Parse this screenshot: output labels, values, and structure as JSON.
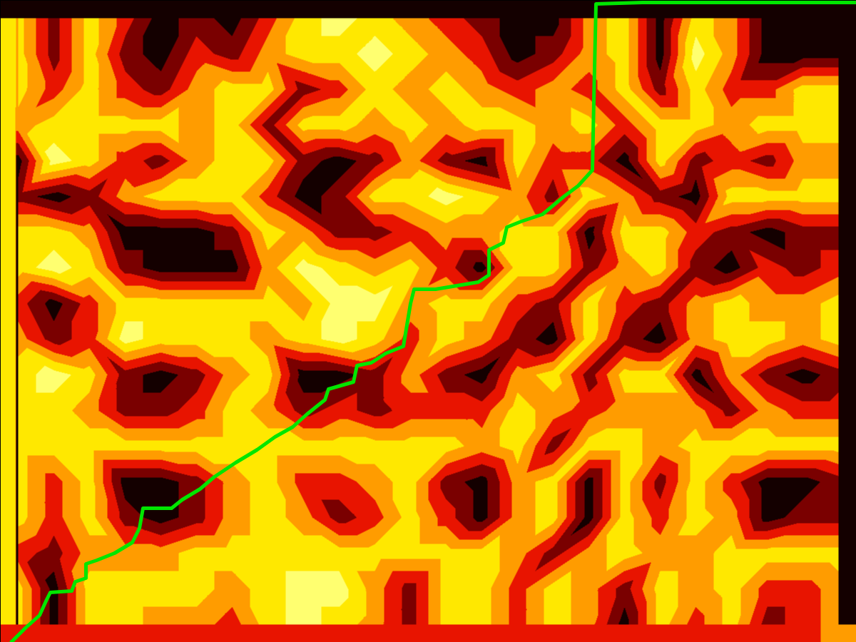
{
  "chart_data": {
    "type": "heatmap",
    "xlim": [
      0,
      1200
    ],
    "ylim": [
      0,
      900
    ],
    "tick_labels": false,
    "heatmap": {
      "x": [
        25,
        75,
        125,
        175,
        225,
        275,
        325,
        375,
        425,
        475,
        525,
        575,
        625,
        675,
        725,
        775,
        825,
        875,
        925,
        975,
        1025,
        1075,
        1125,
        1175
      ],
      "y": [
        875,
        825,
        775,
        725,
        675,
        625,
        575,
        525,
        475,
        425,
        375,
        325,
        275,
        225,
        175,
        125,
        75,
        25
      ],
      "z": [
        [
          4,
          1,
          4,
          2,
          0,
          1,
          0,
          2,
          4,
          5,
          4,
          3,
          2,
          1,
          0,
          0,
          3,
          4,
          0,
          4,
          3,
          0,
          0,
          0
        ],
        [
          4,
          1,
          4,
          1,
          0,
          2,
          1,
          3,
          4,
          4,
          5,
          4,
          3,
          2,
          0,
          1,
          3,
          4,
          0,
          5,
          3,
          0,
          0,
          0
        ],
        [
          4,
          2,
          4,
          2,
          1,
          3,
          4,
          4,
          1,
          2,
          4,
          3,
          4,
          3,
          2,
          3,
          2,
          4,
          1,
          4,
          2,
          2,
          4,
          4
        ],
        [
          3,
          4,
          4,
          4,
          4,
          3,
          4,
          1,
          4,
          4,
          3,
          4,
          3,
          4,
          4,
          3,
          4,
          2,
          4,
          4,
          3,
          4,
          4,
          4
        ],
        [
          0,
          5,
          4,
          2,
          1,
          3,
          4,
          4,
          1,
          0,
          1,
          3,
          1,
          0,
          4,
          2,
          2,
          0,
          4,
          1,
          2,
          1,
          3,
          3
        ],
        [
          1,
          0,
          1,
          3,
          4,
          4,
          4,
          2,
          0,
          1,
          4,
          4,
          5,
          4,
          3,
          1,
          4,
          3,
          1,
          0,
          4,
          4,
          4,
          4
        ],
        [
          4,
          4,
          3,
          0,
          0,
          0,
          1,
          4,
          3,
          1,
          1,
          2,
          3,
          3,
          4,
          4,
          0,
          4,
          4,
          2,
          1,
          0,
          1,
          1
        ],
        [
          4,
          5,
          4,
          1,
          0,
          0,
          0,
          3,
          5,
          4,
          3,
          4,
          2,
          0,
          4,
          4,
          1,
          3,
          4,
          1,
          0,
          2,
          1,
          2
        ],
        [
          2,
          0,
          2,
          4,
          4,
          4,
          4,
          4,
          3,
          5,
          5,
          3,
          4,
          4,
          2,
          1,
          4,
          2,
          1,
          3,
          4,
          3,
          3,
          4
        ],
        [
          3,
          1,
          2,
          5,
          4,
          4,
          4,
          3,
          4,
          5,
          4,
          2,
          4,
          3,
          1,
          0,
          4,
          1,
          0,
          3,
          4,
          4,
          3,
          4
        ],
        [
          4,
          5,
          4,
          1,
          0,
          1,
          3,
          4,
          0,
          0,
          1,
          3,
          1,
          0,
          3,
          4,
          1,
          4,
          4,
          0,
          3,
          1,
          0,
          1
        ],
        [
          4,
          4,
          3,
          1,
          1,
          2,
          4,
          3,
          1,
          2,
          1,
          2,
          2,
          2,
          4,
          3,
          2,
          3,
          3,
          3,
          1,
          3,
          2,
          2
        ],
        [
          4,
          4,
          4,
          4,
          4,
          4,
          4,
          4,
          4,
          4,
          4,
          4,
          4,
          3,
          4,
          1,
          4,
          4,
          3,
          4,
          4,
          4,
          4,
          4
        ],
        [
          4,
          2,
          4,
          0,
          0,
          1,
          3,
          4,
          2,
          2,
          3,
          4,
          1,
          0,
          3,
          4,
          0,
          4,
          1,
          4,
          2,
          0,
          0,
          1
        ],
        [
          4,
          2,
          4,
          1,
          0,
          1,
          3,
          4,
          3,
          1,
          2,
          4,
          2,
          0,
          3,
          4,
          0,
          4,
          2,
          4,
          3,
          0,
          1,
          1
        ],
        [
          2,
          1,
          3,
          3,
          3,
          4,
          4,
          4,
          4,
          4,
          4,
          4,
          4,
          4,
          3,
          1,
          3,
          4,
          3,
          3,
          4,
          4,
          4,
          4
        ],
        [
          4,
          0,
          4,
          4,
          4,
          4,
          3,
          4,
          5,
          5,
          3,
          1,
          4,
          4,
          2,
          4,
          3,
          1,
          4,
          3,
          4,
          2,
          2,
          3
        ],
        [
          4,
          0,
          4,
          4,
          3,
          3,
          2,
          4,
          5,
          4,
          3,
          1,
          4,
          4,
          2,
          4,
          3,
          0,
          4,
          2,
          4,
          1,
          2,
          3
        ]
      ],
      "zlim": [
        0,
        5
      ],
      "colors": [
        "#140000",
        "#7a0000",
        "#e81400",
        "#ff9c00",
        "#ffe800",
        "#ffff70"
      ]
    },
    "series": [
      {
        "type": "line",
        "color": "#00e600",
        "x": [
          15,
          20,
          35,
          55,
          65,
          70,
          100,
          105,
          120,
          120,
          135,
          160,
          185,
          195,
          200,
          240,
          255,
          280,
          300,
          330,
          360,
          385,
          410,
          430,
          455,
          460,
          495,
          500,
          520,
          540,
          565,
          570,
          575,
          580,
          610,
          640,
          670,
          685,
          685,
          705,
          710,
          730,
          760,
          790,
          810,
          830,
          832,
          835,
          900,
          1200
        ],
        "values": [
          0,
          5,
          20,
          38,
          60,
          70,
          72,
          85,
          90,
          110,
          115,
          125,
          140,
          160,
          188,
          188,
          200,
          215,
          232,
          252,
          270,
          288,
          302,
          320,
          340,
          355,
          365,
          388,
          392,
          405,
          415,
          445,
          475,
          495,
          495,
          500,
          505,
          515,
          550,
          560,
          582,
          590,
          600,
          625,
          640,
          662,
          760,
          895,
          897,
          897
        ]
      }
    ]
  }
}
